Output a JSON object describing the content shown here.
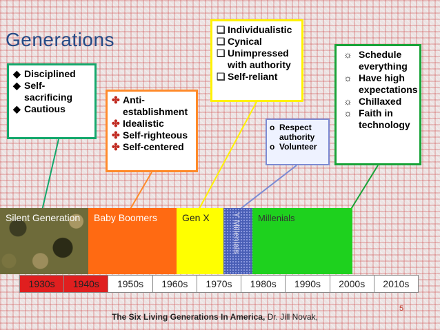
{
  "title": "Generations",
  "callouts": {
    "silent": {
      "items": [
        "Disciplined",
        "Self-sacrificing",
        "Cautious"
      ],
      "marker": "◆",
      "border": "#14a86c"
    },
    "boomers": {
      "items": [
        "Anti-establishment",
        "Idealistic",
        "Self-righteous",
        "Self-centered"
      ],
      "marker": "✤",
      "border": "#ff8a2a"
    },
    "genx": {
      "items": [
        "Individualistic",
        "Cynical",
        "Unimpressed with authority",
        "Self-reliant"
      ],
      "marker": "❑",
      "border": "#fff200"
    },
    "ymillenials": {
      "items": [
        "Respect authority",
        "Volunteer"
      ],
      "marker": "o"
    },
    "millenials": {
      "items": [
        "Schedule everything",
        "Have high expectations",
        "Chillaxed",
        "Faith in technology"
      ],
      "marker": "☼",
      "border": "#18a338"
    }
  },
  "generations": [
    {
      "label": "Silent Generation",
      "color": "#6e6b3a"
    },
    {
      "label": "Baby Boomers",
      "color": "#ff6a12"
    },
    {
      "label": "Gen X",
      "color": "#ffff00"
    },
    {
      "label": "Y Millenials",
      "color": "#4a5fb6"
    },
    {
      "label": "Millenials",
      "color": "#1ed11e"
    }
  ],
  "decades": [
    "1930s",
    "1940s",
    "1950s",
    "1960s",
    "1970s",
    "1980s",
    "1990s",
    "2000s",
    "2010s"
  ],
  "page_number": "5",
  "citation": {
    "title": "The Six Living Generations In America,",
    "author": "Dr. Jill Novak,"
  }
}
